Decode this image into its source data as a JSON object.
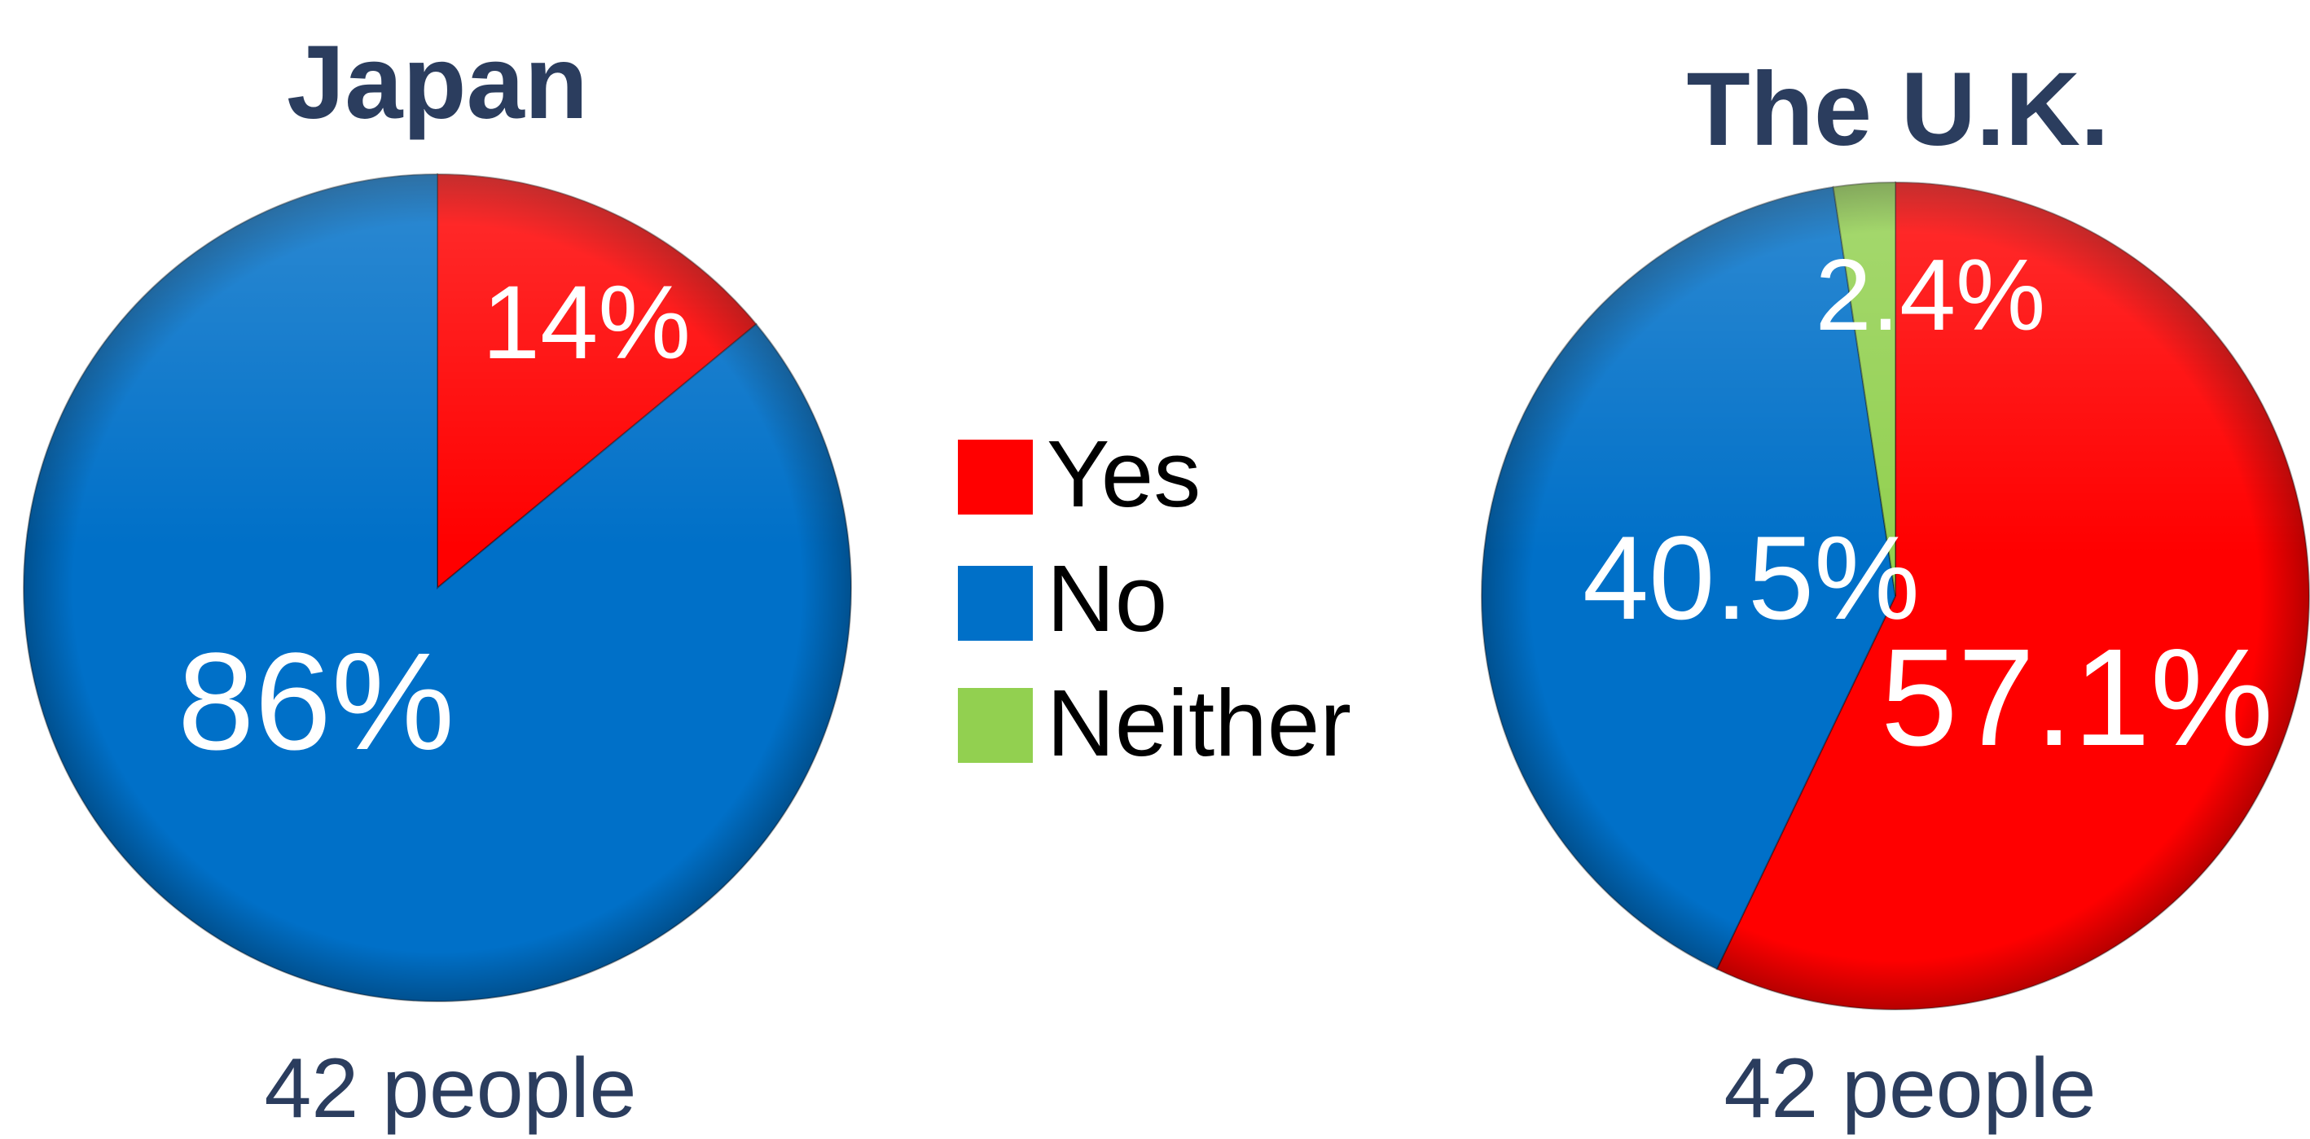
{
  "colors": {
    "yes": "#ff0000",
    "no": "#0070c8",
    "neither": "#92d050",
    "title": "#2b3d5e",
    "label_text": "#ffffff",
    "legend_text": "#000000"
  },
  "chart_data": [
    {
      "type": "pie",
      "title": "Japan",
      "caption": "42 people",
      "start_angle_deg": 0,
      "direction": "clockwise",
      "slices": [
        {
          "name": "Yes",
          "value": 14,
          "label": "14%",
          "color": "#ff0000"
        },
        {
          "name": "No",
          "value": 86,
          "label": "86%",
          "color": "#0070c8"
        }
      ]
    },
    {
      "type": "pie",
      "title": "The U.K.",
      "caption": "42 people",
      "start_angle_deg": 0,
      "direction": "clockwise",
      "slices": [
        {
          "name": "Yes",
          "value": 57.1,
          "label": "57.1%",
          "color": "#ff0000"
        },
        {
          "name": "No",
          "value": 40.5,
          "label": "40.5%",
          "color": "#0070c8"
        },
        {
          "name": "Neither",
          "value": 2.4,
          "label": "2.4%",
          "color": "#92d050"
        }
      ]
    }
  ],
  "legend": {
    "placement": "center",
    "items": [
      {
        "label": "Yes",
        "color": "#ff0000"
      },
      {
        "label": "No",
        "color": "#0070c8"
      },
      {
        "label": "Neither",
        "color": "#92d050"
      }
    ]
  }
}
